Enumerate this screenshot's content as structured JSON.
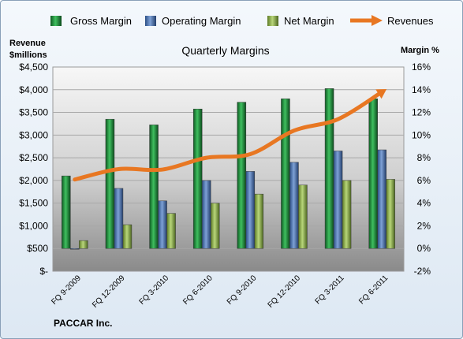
{
  "chart_data": {
    "type": "bar",
    "title": "Quarterly Margins",
    "left_axis_title_line1": "Revenue",
    "left_axis_title_line2": "$millions",
    "right_axis_title": "Margin  %",
    "source": "PACCAR Inc.",
    "categories": [
      "FQ 9-2009",
      "FQ 12-2009",
      "FQ 3-2010",
      "FQ 6-2010",
      "FQ 9-2010",
      "FQ 12-2010",
      "FQ 3-2011",
      "FQ 6-2011"
    ],
    "left_ylim": [
      0,
      4500
    ],
    "left_ticks": [
      "$-",
      "$500",
      "$1,000",
      "$1,500",
      "$2,000",
      "$2,500",
      "$3,000",
      "$3,500",
      "$4,000",
      "$4,500"
    ],
    "right_ylim": [
      -2,
      16
    ],
    "right_ticks": [
      "-2%",
      "0%",
      "2%",
      "4%",
      "6%",
      "8%",
      "10%",
      "12%",
      "14%",
      "16%"
    ],
    "legend_position": "top",
    "grid": true,
    "series": [
      {
        "name": "Gross Margin",
        "kind": "bar",
        "axis": "right",
        "color": "#1f8a3a",
        "values": [
          6.4,
          11.4,
          10.9,
          12.3,
          12.9,
          13.2,
          14.1,
          13.2
        ]
      },
      {
        "name": "Operating Margin",
        "kind": "bar",
        "axis": "right",
        "color": "#4a74b4",
        "values": [
          0.0,
          5.3,
          4.2,
          6.0,
          6.8,
          7.6,
          8.6,
          8.7
        ]
      },
      {
        "name": "Net Margin",
        "kind": "bar",
        "axis": "right",
        "color": "#8fb34a",
        "values": [
          0.7,
          2.1,
          3.1,
          4.0,
          4.8,
          5.6,
          6.0,
          6.1
        ]
      },
      {
        "name": "Revenues",
        "kind": "line",
        "axis": "left",
        "color": "#e87722",
        "values": [
          2020,
          2250,
          2240,
          2500,
          2580,
          3100,
          3350,
          3950
        ]
      }
    ]
  }
}
